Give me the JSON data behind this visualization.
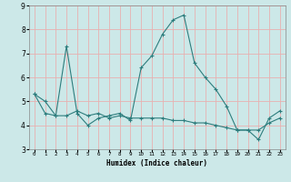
{
  "xlabel": "Humidex (Indice chaleur)",
  "background_color": "#cce8e8",
  "line_color": "#2d7d7d",
  "grid_color": "#e8b0b0",
  "xlim": [
    -0.5,
    23.5
  ],
  "ylim": [
    3.0,
    9.0
  ],
  "yticks": [
    3,
    4,
    5,
    6,
    7,
    8,
    9
  ],
  "xtick_labels": [
    "0",
    "1",
    "2",
    "3",
    "4",
    "5",
    "6",
    "7",
    "8",
    "9",
    "10",
    "11",
    "12",
    "13",
    "14",
    "15",
    "16",
    "17",
    "18",
    "19",
    "20",
    "21",
    "22",
    "23"
  ],
  "series": [
    [
      5.3,
      5.0,
      4.4,
      7.3,
      4.5,
      4.0,
      4.3,
      4.4,
      4.5,
      4.2,
      6.4,
      6.9,
      7.8,
      8.4,
      8.6,
      6.6,
      6.0,
      5.5,
      4.8,
      3.8,
      3.8,
      3.4,
      4.3,
      4.6
    ],
    [
      5.3,
      4.5,
      4.4,
      4.4,
      4.6,
      4.4,
      4.5,
      4.3,
      4.4,
      4.3,
      4.3,
      4.3,
      4.3,
      4.2,
      4.2,
      4.1,
      4.1,
      4.0,
      3.9,
      3.8,
      3.8,
      3.8,
      4.1,
      4.3
    ]
  ]
}
